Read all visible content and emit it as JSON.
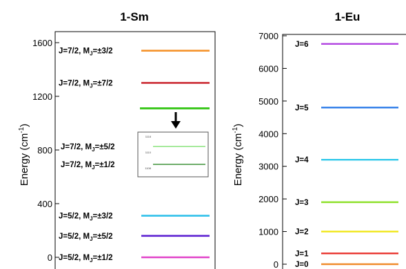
{
  "chart_data": [
    {
      "type": "energy-level",
      "title": "1-Sm",
      "ylabel": "Energy (cm",
      "ylabel_sup": "-1",
      "ylabel_end": ")",
      "ylim": [
        0,
        1650
      ],
      "yticks": [
        "0",
        "400",
        "800",
        "1200",
        "1600"
      ],
      "levels": [
        {
          "J": "5/2",
          "MJ": "±1/2",
          "energy": 0,
          "color": "#e040c8"
        },
        {
          "J": "5/2",
          "MJ": "±5/2",
          "energy": 160,
          "color": "#5b1fd1"
        },
        {
          "J": "5/2",
          "MJ": "±3/2",
          "energy": 310,
          "color": "#2ec0ea"
        },
        {
          "J": "7/2",
          "MJ": "±7/2",
          "energy": 1300,
          "color": "#c8202a"
        },
        {
          "J": "7/2",
          "MJ": "±3/2",
          "energy": 1540,
          "color": "#f5922a"
        }
      ],
      "split_level": {
        "energy": 1110,
        "color": "#3cc81e"
      },
      "inset_levels": [
        {
          "J": "7/2",
          "MJ": "±5/2",
          "color": "#7fe070",
          "pos": 0.32
        },
        {
          "J": "7/2",
          "MJ": "±1/2",
          "color": "#2f8a2a",
          "pos": 0.72
        }
      ],
      "inset_ticks": [
        "1118",
        "1110",
        "1108"
      ]
    },
    {
      "type": "energy-level",
      "title": "1-Eu",
      "ylabel": "Energy (cm",
      "ylabel_sup": "-1",
      "ylabel_end": ")",
      "ylim": [
        0,
        7000
      ],
      "yticks": [
        "0",
        "1000",
        "2000",
        "3000",
        "4000",
        "5000",
        "6000",
        "7000"
      ],
      "levels": [
        {
          "J": "0",
          "energy": 0,
          "color": "#f08a2a"
        },
        {
          "J": "1",
          "energy": 330,
          "color": "#e8302a"
        },
        {
          "J": "2",
          "energy": 1000,
          "color": "#f0e614"
        },
        {
          "J": "3",
          "energy": 1900,
          "color": "#8ee02a"
        },
        {
          "J": "4",
          "energy": 3200,
          "color": "#2ec8ea"
        },
        {
          "J": "5",
          "energy": 4800,
          "color": "#2a7ae8"
        },
        {
          "J": "6",
          "energy": 6750,
          "color": "#b040e0"
        }
      ]
    }
  ]
}
